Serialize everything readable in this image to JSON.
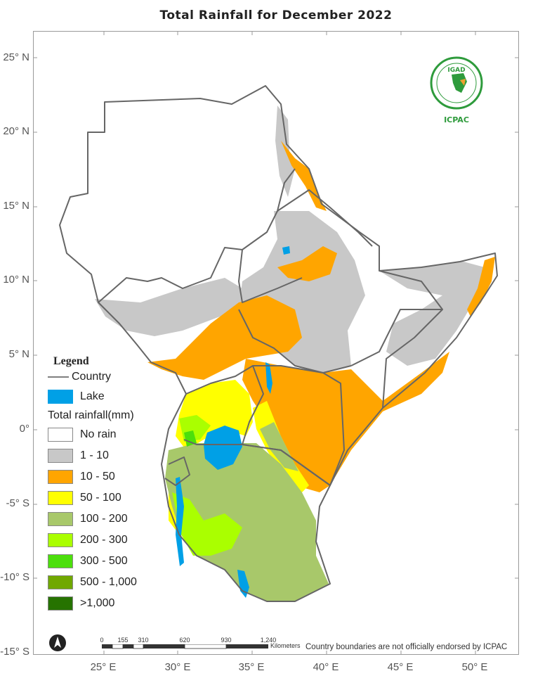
{
  "title": "Total  Rainfall for  December  2022",
  "lat_ticks": [
    "25° N",
    "20° N",
    "15° N",
    "10° N",
    "5° N",
    "0°",
    "-5° S",
    "-10° S",
    "-15° S"
  ],
  "lon_ticks": [
    "25° E",
    "30° E",
    "35° E",
    "40° E",
    "45° E",
    "50° E"
  ],
  "legend": {
    "title": "Legend",
    "country_label": "Country",
    "lake_label": "Lake",
    "rainfall_title": "Total rainfall(mm)",
    "classes": [
      {
        "label": "No rain",
        "color": "#ffffff"
      },
      {
        "label": "1 - 10",
        "color": "#c8c8c8"
      },
      {
        "label": "10 - 50",
        "color": "#ffa500"
      },
      {
        "label": "50 - 100",
        "color": "#ffff00"
      },
      {
        "label": "100 - 200",
        "color": "#a8c86a"
      },
      {
        "label": "200 - 300",
        "color": "#aaff00"
      },
      {
        "label": "300 - 500",
        "color": "#4cdf0c"
      },
      {
        "label": "500 - 1,000",
        "color": "#70a800"
      },
      {
        "label": ">1,000",
        "color": "#267300"
      }
    ],
    "lake_color": "#00a0e6",
    "country_color": "#666666"
  },
  "logo": {
    "top_text": "IGAD",
    "caption": "ICPAC"
  },
  "scale": {
    "labels": [
      "0",
      "155",
      "310",
      "620",
      "930",
      "1,240"
    ],
    "unit": "Kilometers"
  },
  "disclaimer": "Country boundaries are not officially endorsed by ICPAC",
  "north_arrow": "north-arrow-icon"
}
